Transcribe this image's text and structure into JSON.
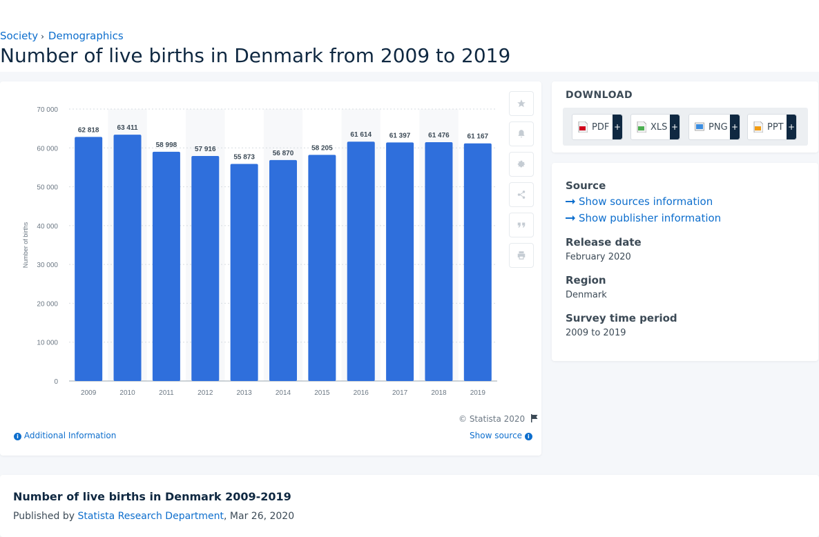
{
  "breadcrumb": {
    "item1": "Society",
    "item2": "Demographics"
  },
  "page_title": "Number of live births in Denmark from 2009 to 2019",
  "chart_data": {
    "type": "bar",
    "categories": [
      "2009",
      "2010",
      "2011",
      "2012",
      "2013",
      "2014",
      "2015",
      "2016",
      "2017",
      "2018",
      "2019"
    ],
    "values": [
      62818,
      63411,
      58998,
      57916,
      55873,
      56870,
      58205,
      61614,
      61397,
      61476,
      61167
    ],
    "data_labels": [
      "62 818",
      "63 411",
      "58 998",
      "57 916",
      "55 873",
      "56 870",
      "58 205",
      "61 614",
      "61 397",
      "61 476",
      "61 167"
    ],
    "ylabel": "Number of births",
    "yticks": [
      "0",
      "10 000",
      "20 000",
      "30 000",
      "40 000",
      "50 000",
      "60 000",
      "70 000"
    ],
    "ylim": [
      0,
      70000
    ],
    "grid": true,
    "bar_color": "#2f6fdc"
  },
  "toolbar": {
    "icons": [
      "star-icon",
      "bell-icon",
      "gear-icon",
      "share-icon",
      "quote-icon",
      "print-icon"
    ]
  },
  "footer": {
    "copyright": "© Statista 2020",
    "additional_info": "Additional Information",
    "show_source": "Show source"
  },
  "download": {
    "title": "DOWNLOAD",
    "formats": [
      "PDF",
      "XLS",
      "PNG",
      "PPT"
    ],
    "plus": "+"
  },
  "meta": {
    "source_label": "Source",
    "sources_link": "Show sources information",
    "publisher_link": "Show publisher information",
    "release_label": "Release date",
    "release_value": "February 2020",
    "region_label": "Region",
    "region_value": "Denmark",
    "survey_label": "Survey time period",
    "survey_value": "2009 to 2019"
  },
  "bottom": {
    "title": "Number of live births in Denmark 2009-2019",
    "published_by": "Published by",
    "publisher": "Statista Research Department",
    "date": ", Mar 26, 2020"
  }
}
